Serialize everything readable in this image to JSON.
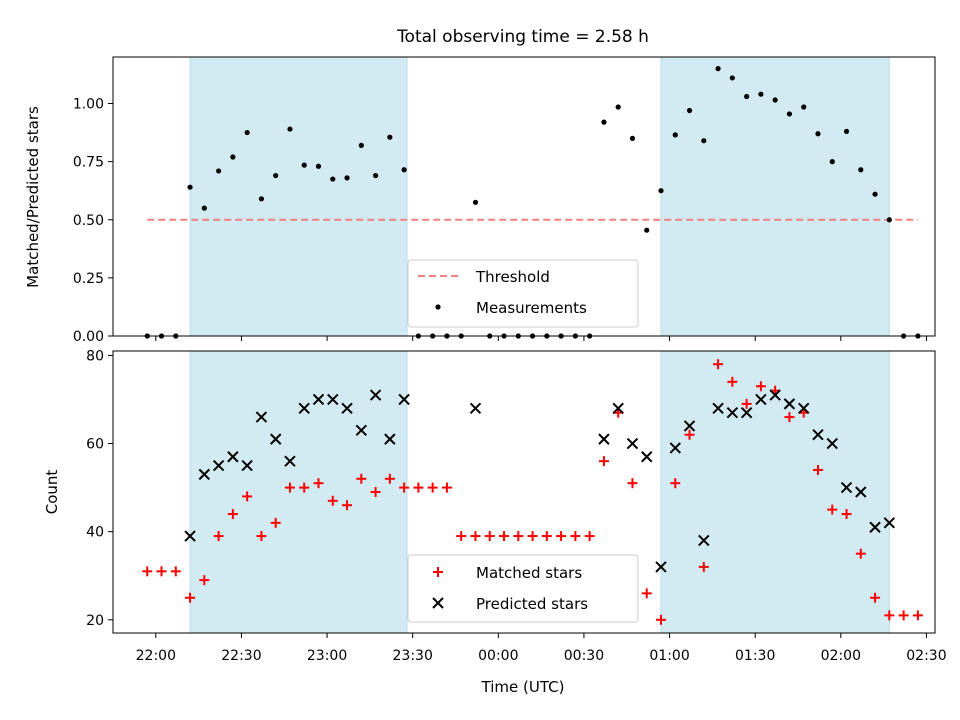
{
  "title": "Total observing time = 2.58 h",
  "chart_data": [
    {
      "type": "scatter",
      "ylabel": "Matched/Predicted stars",
      "ylim": [
        0,
        1.2
      ],
      "yticks": [
        0.0,
        0.25,
        0.5,
        0.75,
        1.0
      ],
      "ytick_labels": [
        "0.00",
        "0.25",
        "0.50",
        "0.75",
        "1.00"
      ],
      "threshold": {
        "name": "Threshold",
        "value": 0.5,
        "x_range": [
          "21:57",
          "02:27"
        ],
        "color": "#f08080"
      },
      "shaded_spans": [
        [
          "22:12",
          "23:28"
        ],
        [
          "00:57",
          "02:17"
        ]
      ],
      "shade_color": "#add8e6",
      "legend": {
        "placement": "lower center",
        "entries": [
          "Threshold",
          "Measurements"
        ]
      },
      "series": [
        {
          "name": "Measurements",
          "color": "#000000",
          "x": [
            "21:57",
            "22:02",
            "22:07",
            "22:12",
            "22:17",
            "22:22",
            "22:27",
            "22:32",
            "22:37",
            "22:42",
            "22:47",
            "22:52",
            "22:57",
            "23:02",
            "23:07",
            "23:12",
            "23:17",
            "23:22",
            "23:27",
            "23:32",
            "23:37",
            "23:42",
            "23:47",
            "23:52",
            "23:57",
            "00:02",
            "00:07",
            "00:12",
            "00:17",
            "00:22",
            "00:27",
            "00:32",
            "00:37",
            "00:42",
            "00:47",
            "00:52",
            "00:57",
            "01:02",
            "01:07",
            "01:12",
            "01:17",
            "01:22",
            "01:27",
            "01:32",
            "01:37",
            "01:42",
            "01:47",
            "01:52",
            "01:57",
            "02:02",
            "02:07",
            "02:12",
            "02:17",
            "02:22",
            "02:27"
          ],
          "y": [
            0,
            0,
            0,
            0.64,
            0.55,
            0.71,
            0.77,
            0.875,
            0.59,
            0.69,
            0.89,
            0.735,
            0.73,
            0.675,
            0.68,
            0.82,
            0.69,
            0.855,
            0.715,
            0,
            0,
            0,
            0,
            0.575,
            0,
            0,
            0,
            0,
            0,
            0,
            0,
            0,
            0.92,
            0.985,
            0.85,
            0.455,
            0.625,
            0.865,
            0.97,
            0.84,
            1.15,
            1.11,
            1.03,
            1.04,
            1.015,
            0.955,
            0.985,
            0.87,
            0.75,
            0.88,
            0.715,
            0.61,
            0.5,
            0,
            0
          ]
        }
      ]
    },
    {
      "type": "scatter",
      "xlabel": "Time (UTC)",
      "ylabel": "Count",
      "ylim": [
        17,
        81
      ],
      "yticks": [
        20,
        40,
        60,
        80
      ],
      "xticks": [
        "22:00",
        "22:30",
        "23:00",
        "23:30",
        "00:00",
        "00:30",
        "01:00",
        "01:30",
        "02:00",
        "02:30"
      ],
      "xlim": [
        "21:45",
        "02:33"
      ],
      "shaded_spans": [
        [
          "22:12",
          "23:28"
        ],
        [
          "00:57",
          "02:17"
        ]
      ],
      "shade_color": "#add8e6",
      "legend": {
        "placement": "lower center",
        "entries": [
          "Matched stars",
          "Predicted stars"
        ]
      },
      "series": [
        {
          "name": "Matched stars",
          "marker": "plus",
          "color": "#ff0000",
          "x": [
            "21:57",
            "22:02",
            "22:07",
            "22:12",
            "22:17",
            "22:22",
            "22:27",
            "22:32",
            "22:37",
            "22:42",
            "22:47",
            "22:52",
            "22:57",
            "23:02",
            "23:07",
            "23:12",
            "23:17",
            "23:22",
            "23:27",
            "23:32",
            "23:37",
            "23:42",
            "23:47",
            "23:52",
            "23:57",
            "00:02",
            "00:07",
            "00:12",
            "00:17",
            "00:22",
            "00:27",
            "00:32",
            "00:37",
            "00:42",
            "00:47",
            "00:52",
            "00:57",
            "01:02",
            "01:07",
            "01:12",
            "01:17",
            "01:22",
            "01:27",
            "01:32",
            "01:37",
            "01:42",
            "01:47",
            "01:52",
            "01:57",
            "02:02",
            "02:07",
            "02:12",
            "02:17",
            "02:22",
            "02:27"
          ],
          "y": [
            31,
            31,
            31,
            25,
            29,
            39,
            44,
            48,
            39,
            42,
            50,
            50,
            51,
            47,
            46,
            52,
            49,
            52,
            50,
            50,
            50,
            50,
            39,
            39,
            39,
            39,
            39,
            39,
            39,
            39,
            39,
            39,
            56,
            67,
            51,
            26,
            20,
            51,
            62,
            32,
            78,
            74,
            69,
            73,
            72,
            66,
            67,
            54,
            45,
            44,
            35,
            25,
            21,
            21,
            21
          ]
        },
        {
          "name": "Predicted stars",
          "marker": "x",
          "color": "#000000",
          "x": [
            "22:12",
            "22:17",
            "22:22",
            "22:27",
            "22:32",
            "22:37",
            "22:42",
            "22:47",
            "22:52",
            "22:57",
            "23:02",
            "23:07",
            "23:12",
            "23:17",
            "23:22",
            "23:27",
            "23:52",
            "00:37",
            "00:42",
            "00:47",
            "00:52",
            "00:57",
            "01:02",
            "01:07",
            "01:12",
            "01:17",
            "01:22",
            "01:27",
            "01:32",
            "01:37",
            "01:42",
            "01:47",
            "01:52",
            "01:57",
            "02:02",
            "02:07",
            "02:12",
            "02:17"
          ],
          "y": [
            39,
            53,
            55,
            57,
            55,
            66,
            61,
            56,
            68,
            70,
            70,
            68,
            63,
            71,
            61,
            70,
            68,
            61,
            68,
            60,
            57,
            32,
            59,
            64,
            38,
            68,
            67,
            67,
            70,
            71,
            69,
            68,
            62,
            60,
            50,
            49,
            41,
            42
          ]
        }
      ]
    }
  ]
}
